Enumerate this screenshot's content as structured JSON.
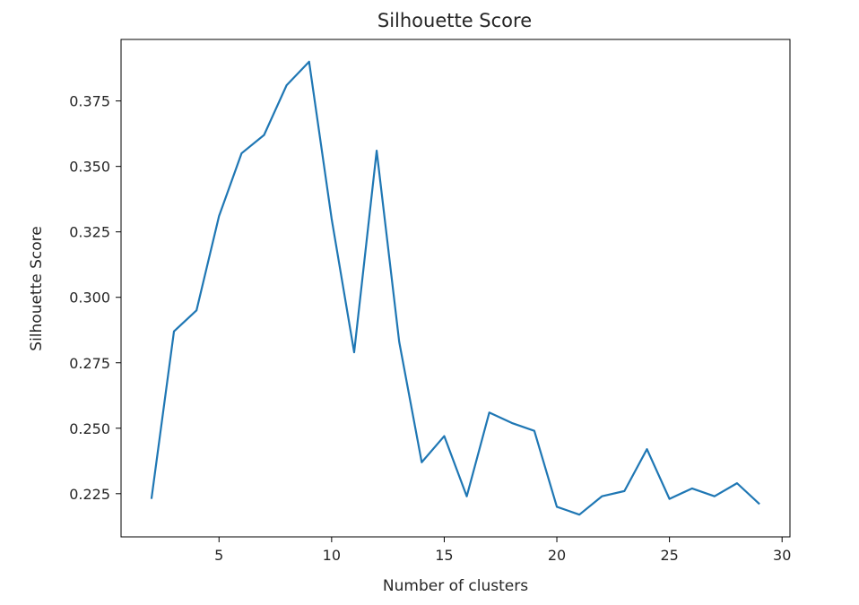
{
  "chart_data": {
    "type": "line",
    "title": "Silhouette Score",
    "xlabel": "Number of clusters",
    "ylabel": "Silhouette Score",
    "x": [
      2,
      3,
      4,
      5,
      6,
      7,
      8,
      9,
      10,
      11,
      12,
      13,
      14,
      15,
      16,
      17,
      18,
      19,
      20,
      21,
      22,
      23,
      24,
      25,
      26,
      27,
      28,
      29
    ],
    "series": [
      {
        "values": [
          0.223,
          0.287,
          0.295,
          0.331,
          0.355,
          0.362,
          0.381,
          0.39,
          0.33,
          0.279,
          0.356,
          0.283,
          0.237,
          0.247,
          0.224,
          0.256,
          0.252,
          0.249,
          0.22,
          0.217,
          0.224,
          0.226,
          0.242,
          0.223,
          0.227,
          0.224,
          0.229,
          0.221
        ],
        "color": "#1f77b4"
      }
    ],
    "xlim": [
      0.65,
      30.35
    ],
    "ylim": [
      0.2085,
      0.3985
    ],
    "xticks": [
      "5",
      "10",
      "15",
      "20",
      "25",
      "30"
    ],
    "yticks": [
      "0.225",
      "0.250",
      "0.275",
      "0.300",
      "0.325",
      "0.350",
      "0.375"
    ],
    "grid": false,
    "legend": "none"
  }
}
